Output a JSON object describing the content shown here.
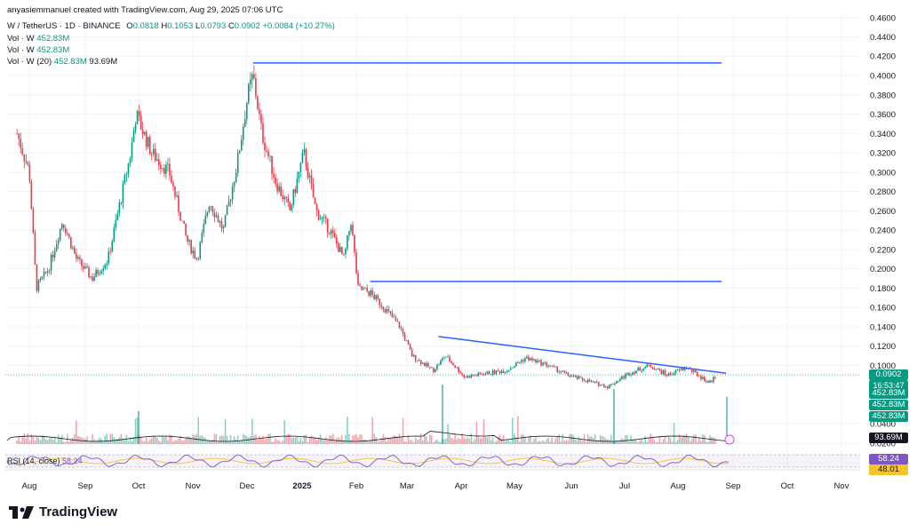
{
  "header": {
    "credit": "anyasiemmanuel created with TradingView.com, Aug 29, 2025 07:06 UTC",
    "symbol": "W / TetherUS · 1D · BINANCE",
    "o_label": "O",
    "o_value": "0.0818",
    "h_label": "H",
    "h_value": "0.1053",
    "l_label": "L",
    "l_value": "0.0793",
    "c_label": "C",
    "c_value": "0.0902",
    "change": "+0.0084 (+10.27%)",
    "vol1_label": "Vol · W",
    "vol1_value": "452.83M",
    "vol2_label": "Vol · W",
    "vol2_value": "452.83M",
    "vol3_label": "Vol · W (20)",
    "vol3_value": "452.83M",
    "vol3_ma": "93.69M",
    "rsi_label": "RSI (14, close)",
    "rsi_value": "58.24"
  },
  "price_tags": {
    "last_price": "0.0902",
    "countdown": "16:53:47",
    "vol_a": "452.83M",
    "vol_b": "452.83M",
    "vol_c": "452.83M",
    "vol_ma": "93.69M",
    "rsi_a": "58.24",
    "rsi_b": "48.01"
  },
  "colors": {
    "up": "#089981",
    "down": "#f23645",
    "trendline": "#2962ff",
    "rsi_line": "#7e57c2",
    "rsi_ma": "#f7c427",
    "grid": "#f0f3fa"
  },
  "brand": {
    "name": "TradingView",
    "icon": "tradingview-logo-icon"
  },
  "chart_data": {
    "type": "candlestick",
    "title": "W / TetherUS · 1D · BINANCE",
    "y_axis_ticks": [
      "0.4600",
      "0.4400",
      "0.4200",
      "0.4000",
      "0.3800",
      "0.3600",
      "0.3400",
      "0.3200",
      "0.3000",
      "0.2800",
      "0.2600",
      "0.2400",
      "0.2200",
      "0.2000",
      "0.1800",
      "0.1600",
      "0.1400",
      "0.1200",
      "0.1000",
      "0.0400",
      "0.0200"
    ],
    "ylim": [
      0.02,
      0.46
    ],
    "x_axis_ticks": [
      "Aug",
      "Sep",
      "Oct",
      "Nov",
      "Dec",
      "2025",
      "Feb",
      "Mar",
      "Apr",
      "May",
      "Jun",
      "Jul",
      "Aug",
      "Sep",
      "Oct",
      "Nov"
    ],
    "x_bold": "2025",
    "close_path": [
      {
        "x": "2024-07-25",
        "y": 0.34
      },
      {
        "x": "2024-08-01",
        "y": 0.3
      },
      {
        "x": "2024-08-05",
        "y": 0.18
      },
      {
        "x": "2024-08-12",
        "y": 0.2
      },
      {
        "x": "2024-08-20",
        "y": 0.25
      },
      {
        "x": "2024-08-28",
        "y": 0.21
      },
      {
        "x": "2024-09-06",
        "y": 0.19
      },
      {
        "x": "2024-09-15",
        "y": 0.21
      },
      {
        "x": "2024-09-28",
        "y": 0.32
      },
      {
        "x": "2024-10-01",
        "y": 0.36
      },
      {
        "x": "2024-10-10",
        "y": 0.32
      },
      {
        "x": "2024-10-20",
        "y": 0.3
      },
      {
        "x": "2024-10-30",
        "y": 0.23
      },
      {
        "x": "2024-11-05",
        "y": 0.21
      },
      {
        "x": "2024-11-12",
        "y": 0.27
      },
      {
        "x": "2024-11-20",
        "y": 0.24
      },
      {
        "x": "2024-11-28",
        "y": 0.31
      },
      {
        "x": "2024-12-04",
        "y": 0.38
      },
      {
        "x": "2024-12-07",
        "y": 0.4
      },
      {
        "x": "2024-12-12",
        "y": 0.34
      },
      {
        "x": "2024-12-20",
        "y": 0.29
      },
      {
        "x": "2024-12-28",
        "y": 0.26
      },
      {
        "x": "2025-01-05",
        "y": 0.32
      },
      {
        "x": "2025-01-12",
        "y": 0.26
      },
      {
        "x": "2025-01-20",
        "y": 0.24
      },
      {
        "x": "2025-01-28",
        "y": 0.21
      },
      {
        "x": "2025-02-01",
        "y": 0.25
      },
      {
        "x": "2025-02-05",
        "y": 0.18
      },
      {
        "x": "2025-02-12",
        "y": 0.175
      },
      {
        "x": "2025-02-20",
        "y": 0.16
      },
      {
        "x": "2025-03-01",
        "y": 0.14
      },
      {
        "x": "2025-03-08",
        "y": 0.11
      },
      {
        "x": "2025-03-20",
        "y": 0.095
      },
      {
        "x": "2025-03-27",
        "y": 0.11
      },
      {
        "x": "2025-04-07",
        "y": 0.088
      },
      {
        "x": "2025-04-20",
        "y": 0.092
      },
      {
        "x": "2025-05-01",
        "y": 0.095
      },
      {
        "x": "2025-05-12",
        "y": 0.108
      },
      {
        "x": "2025-05-25",
        "y": 0.1
      },
      {
        "x": "2025-06-05",
        "y": 0.09
      },
      {
        "x": "2025-06-20",
        "y": 0.082
      },
      {
        "x": "2025-06-28",
        "y": 0.078
      },
      {
        "x": "2025-07-10",
        "y": 0.092
      },
      {
        "x": "2025-07-22",
        "y": 0.1
      },
      {
        "x": "2025-08-01",
        "y": 0.09
      },
      {
        "x": "2025-08-12",
        "y": 0.098
      },
      {
        "x": "2025-08-25",
        "y": 0.082
      },
      {
        "x": "2025-08-29",
        "y": 0.0902
      }
    ],
    "horizontal_levels": [
      {
        "y": 0.413,
        "x_start": "2024-12-07",
        "x_end": "2025-09-01"
      },
      {
        "y": 0.187,
        "x_start": "2025-02-12",
        "x_end": "2025-09-01"
      }
    ],
    "trendline": {
      "x_start": "2025-03-23",
      "x_end": "2025-09-01",
      "y_start": 0.13,
      "y_end": 0.092
    },
    "last_price": 0.0902,
    "rsi": {
      "value": 58.24,
      "ma": 48.01
    }
  }
}
